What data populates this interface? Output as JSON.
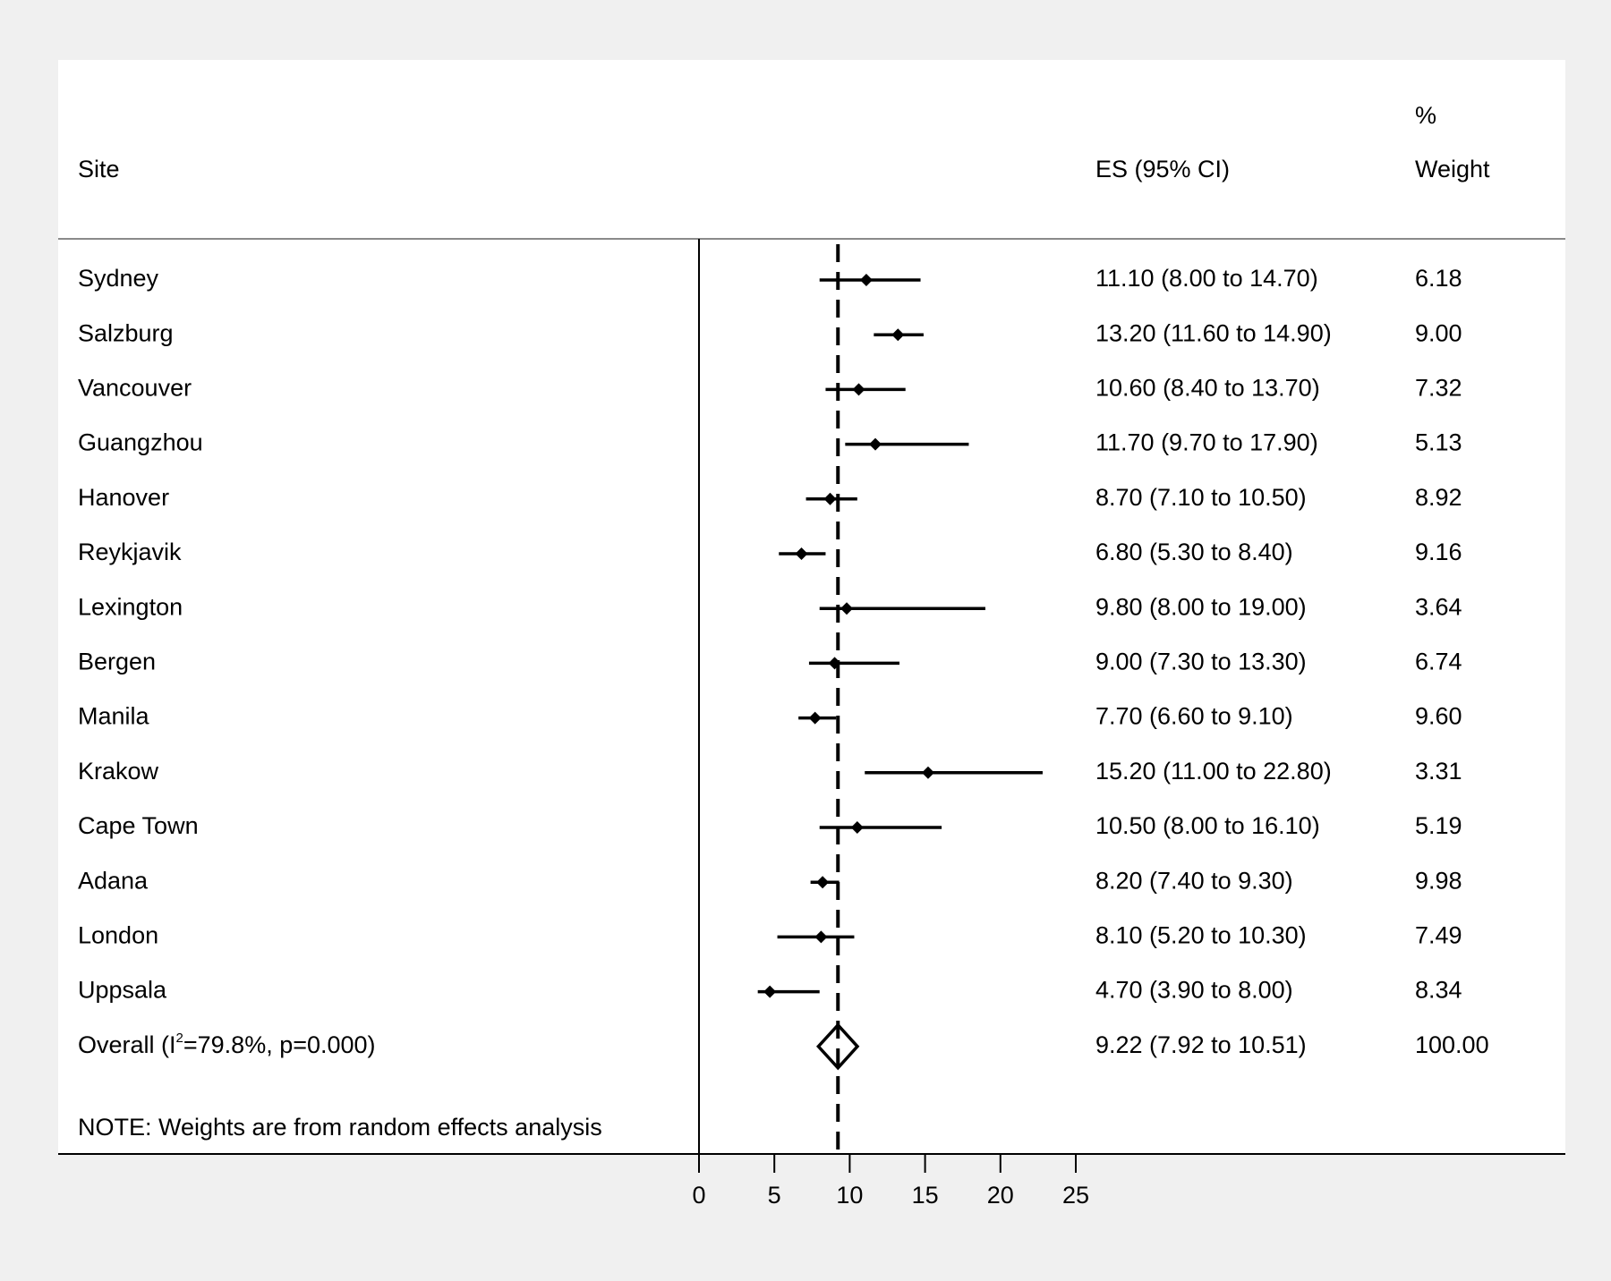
{
  "chart_data": {
    "type": "forest",
    "headers": {
      "site": "Site",
      "es": "ES (95% CI)",
      "weight_line1": "%",
      "weight_line2": "Weight"
    },
    "rows": [
      {
        "site": "Sydney",
        "es": 11.1,
        "lo": 8.0,
        "hi": 14.7,
        "label": "11.10 (8.00 to 14.70)",
        "weight": "6.18"
      },
      {
        "site": "Salzburg",
        "es": 13.2,
        "lo": 11.6,
        "hi": 14.9,
        "label": "13.20 (11.60 to 14.90)",
        "weight": "9.00"
      },
      {
        "site": "Vancouver",
        "es": 10.6,
        "lo": 8.4,
        "hi": 13.7,
        "label": "10.60 (8.40 to 13.70)",
        "weight": "7.32"
      },
      {
        "site": "Guangzhou",
        "es": 11.7,
        "lo": 9.7,
        "hi": 17.9,
        "label": "11.70 (9.70 to 17.90)",
        "weight": "5.13"
      },
      {
        "site": "Hanover",
        "es": 8.7,
        "lo": 7.1,
        "hi": 10.5,
        "label": "8.70 (7.10 to 10.50)",
        "weight": "8.92"
      },
      {
        "site": "Reykjavik",
        "es": 6.8,
        "lo": 5.3,
        "hi": 8.4,
        "label": "6.80 (5.30 to 8.40)",
        "weight": "9.16"
      },
      {
        "site": "Lexington",
        "es": 9.8,
        "lo": 8.0,
        "hi": 19.0,
        "label": "9.80 (8.00 to 19.00)",
        "weight": "3.64"
      },
      {
        "site": "Bergen",
        "es": 9.0,
        "lo": 7.3,
        "hi": 13.3,
        "label": "9.00 (7.30 to 13.30)",
        "weight": "6.74"
      },
      {
        "site": "Manila",
        "es": 7.7,
        "lo": 6.6,
        "hi": 9.1,
        "label": "7.70 (6.60 to 9.10)",
        "weight": "9.60"
      },
      {
        "site": "Krakow",
        "es": 15.2,
        "lo": 11.0,
        "hi": 22.8,
        "label": "15.20 (11.00 to 22.80)",
        "weight": "3.31"
      },
      {
        "site": "Cape Town",
        "es": 10.5,
        "lo": 8.0,
        "hi": 16.1,
        "label": "10.50 (8.00 to 16.10)",
        "weight": "5.19"
      },
      {
        "site": "Adana",
        "es": 8.2,
        "lo": 7.4,
        "hi": 9.3,
        "label": "8.20 (7.40 to 9.30)",
        "weight": "9.98"
      },
      {
        "site": "London",
        "es": 8.1,
        "lo": 5.2,
        "hi": 10.3,
        "label": "8.10 (5.20 to 10.30)",
        "weight": "7.49"
      },
      {
        "site": "Uppsala",
        "es": 4.7,
        "lo": 3.9,
        "hi": 8.0,
        "label": "4.70 (3.90 to 8.00)",
        "weight": "8.34"
      }
    ],
    "overall": {
      "label_prefix": "Overall  (I",
      "label_sup": "2",
      "label_suffix": "=79.8%, p=0.000)",
      "es": 9.22,
      "lo": 7.92,
      "hi": 10.51,
      "label": "9.22 (7.92 to 10.51)",
      "weight": "100.00"
    },
    "note": "NOTE: Weights are from random effects analysis",
    "xticks": [
      0,
      5,
      10,
      15,
      20,
      25
    ],
    "xlim": [
      0,
      25
    ],
    "reference_line": 9.22
  }
}
